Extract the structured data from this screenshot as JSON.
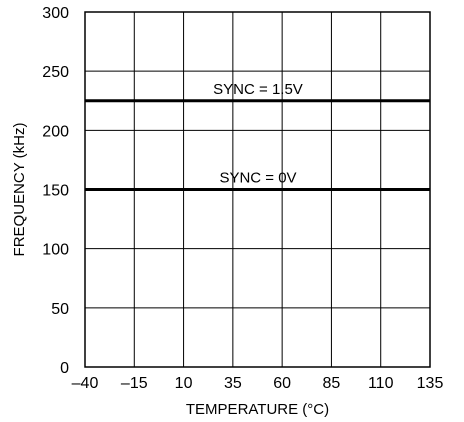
{
  "chart_data": {
    "type": "line",
    "title": "",
    "xlabel": "TEMPERATURE (°C)",
    "ylabel": "FREQUENCY (kHz)",
    "xlim": [
      -40,
      135
    ],
    "ylim": [
      0,
      300
    ],
    "x_ticks": [
      -40,
      -15,
      10,
      35,
      60,
      85,
      110,
      135
    ],
    "x_tick_labels": [
      "–40",
      "–15",
      "10",
      "35",
      "60",
      "85",
      "110",
      "135"
    ],
    "y_ticks": [
      0,
      50,
      100,
      150,
      200,
      250,
      300
    ],
    "y_tick_labels": [
      "0",
      "50",
      "100",
      "150",
      "200",
      "250",
      "300"
    ],
    "grid": true,
    "series": [
      {
        "name": "SYNC = 1.5V",
        "x": [
          -40,
          135
        ],
        "y": [
          225,
          225
        ]
      },
      {
        "name": "SYNC = 0V",
        "x": [
          -40,
          135
        ],
        "y": [
          150,
          150
        ]
      }
    ]
  }
}
